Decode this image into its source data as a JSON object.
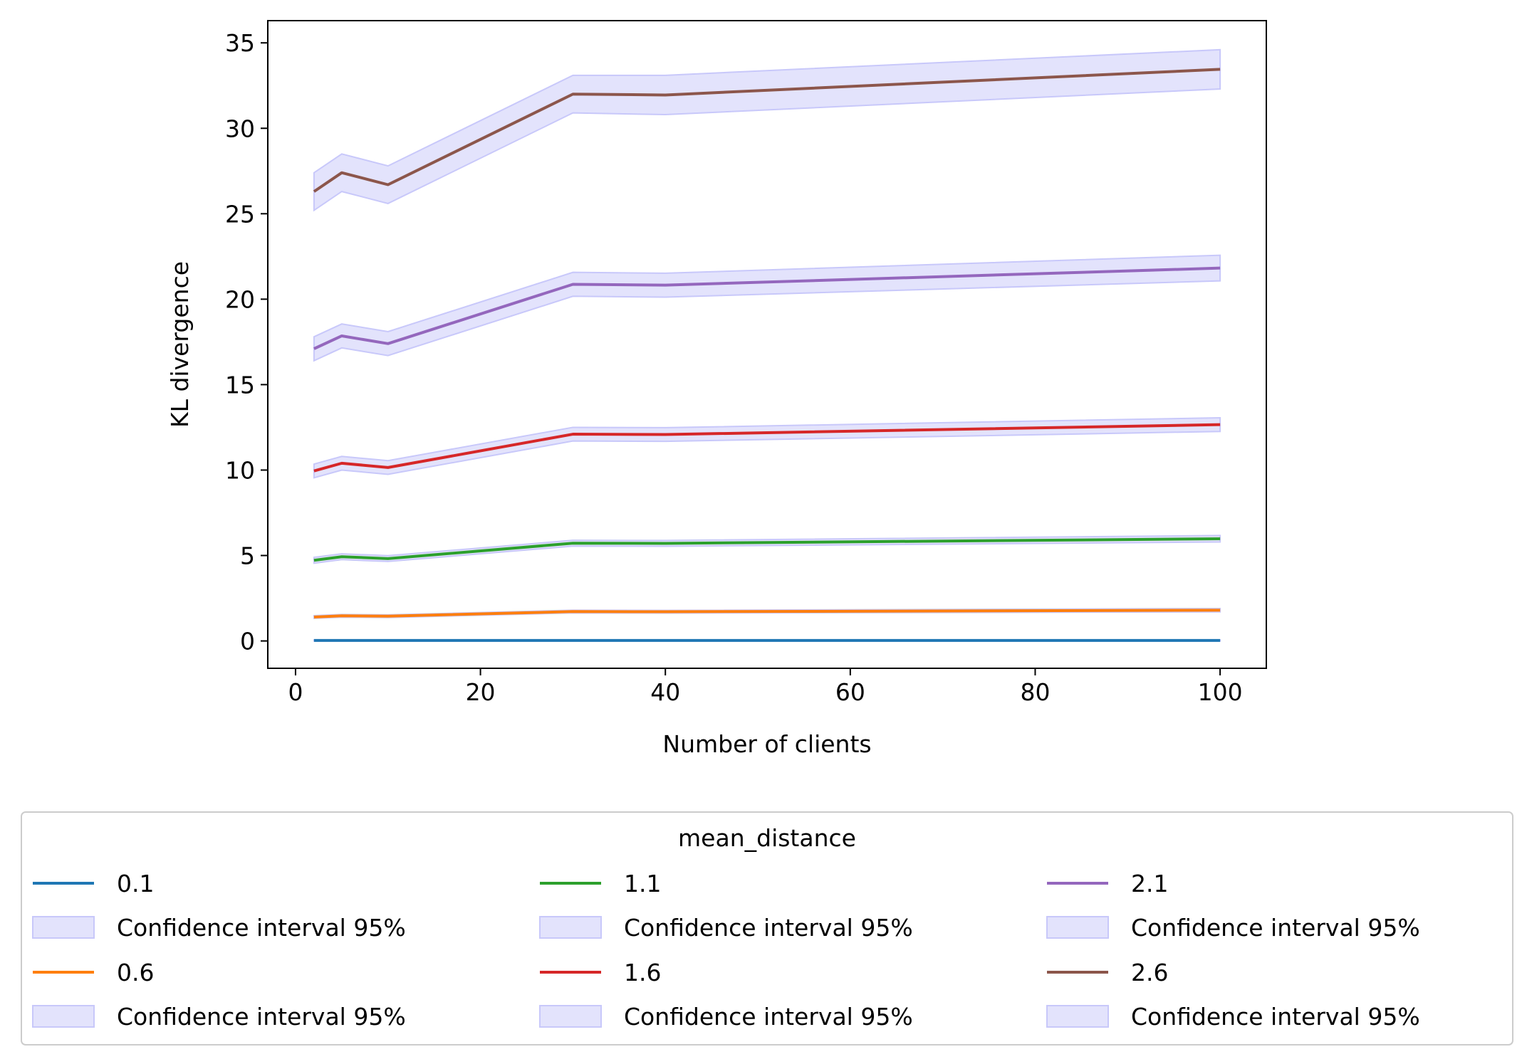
{
  "chart_data": {
    "type": "line",
    "xlabel": "Number of clients",
    "ylabel": "KL divergence",
    "xlim": [
      -3,
      105
    ],
    "ylim": [
      -1.6,
      36.3
    ],
    "x_ticks": [
      0,
      20,
      40,
      60,
      80,
      100
    ],
    "y_ticks": [
      0,
      5,
      10,
      15,
      20,
      25,
      30,
      35
    ],
    "x": [
      2,
      5,
      10,
      30,
      40,
      100
    ],
    "band_color": "#c8c8fa",
    "series": [
      {
        "name": "0.1",
        "color": "#1f77b4",
        "values": [
          0.03,
          0.03,
          0.03,
          0.03,
          0.03,
          0.03
        ],
        "ci_low": [
          0.0,
          0.0,
          0.0,
          0.0,
          0.0,
          0.0
        ],
        "ci_high": [
          0.06,
          0.06,
          0.06,
          0.06,
          0.06,
          0.06
        ]
      },
      {
        "name": "0.6",
        "color": "#ff7f0e",
        "values": [
          1.4,
          1.47,
          1.45,
          1.72,
          1.71,
          1.8
        ],
        "ci_low": [
          1.32,
          1.39,
          1.37,
          1.64,
          1.63,
          1.7
        ],
        "ci_high": [
          1.48,
          1.55,
          1.53,
          1.8,
          1.79,
          1.9
        ]
      },
      {
        "name": "1.1",
        "color": "#2ca02c",
        "values": [
          4.72,
          4.93,
          4.82,
          5.72,
          5.71,
          5.98
        ],
        "ci_low": [
          4.55,
          4.76,
          4.65,
          5.55,
          5.54,
          5.79
        ],
        "ci_high": [
          4.89,
          5.1,
          4.99,
          5.89,
          5.88,
          6.17
        ]
      },
      {
        "name": "1.6",
        "color": "#d62728",
        "values": [
          9.95,
          10.4,
          10.15,
          12.1,
          12.08,
          12.66
        ],
        "ci_low": [
          9.55,
          10.0,
          9.75,
          11.7,
          11.68,
          12.26
        ],
        "ci_high": [
          10.35,
          10.8,
          10.55,
          12.5,
          12.48,
          13.06
        ]
      },
      {
        "name": "2.1",
        "color": "#9467bd",
        "values": [
          17.1,
          17.85,
          17.4,
          20.87,
          20.82,
          21.82
        ],
        "ci_low": [
          16.4,
          17.15,
          16.7,
          20.17,
          20.12,
          21.07
        ],
        "ci_high": [
          17.8,
          18.55,
          18.1,
          21.57,
          21.52,
          22.57
        ]
      },
      {
        "name": "2.6",
        "color": "#8c564b",
        "values": [
          26.3,
          27.4,
          26.7,
          32.0,
          31.95,
          33.45
        ],
        "ci_low": [
          25.2,
          26.3,
          25.6,
          30.9,
          30.8,
          32.3
        ],
        "ci_high": [
          27.4,
          28.5,
          27.8,
          33.1,
          33.1,
          34.6
        ]
      }
    ],
    "legend": {
      "title": "mean_distance",
      "placement": "below",
      "columns": 3,
      "band_label": "Confidence interval 95%"
    }
  }
}
